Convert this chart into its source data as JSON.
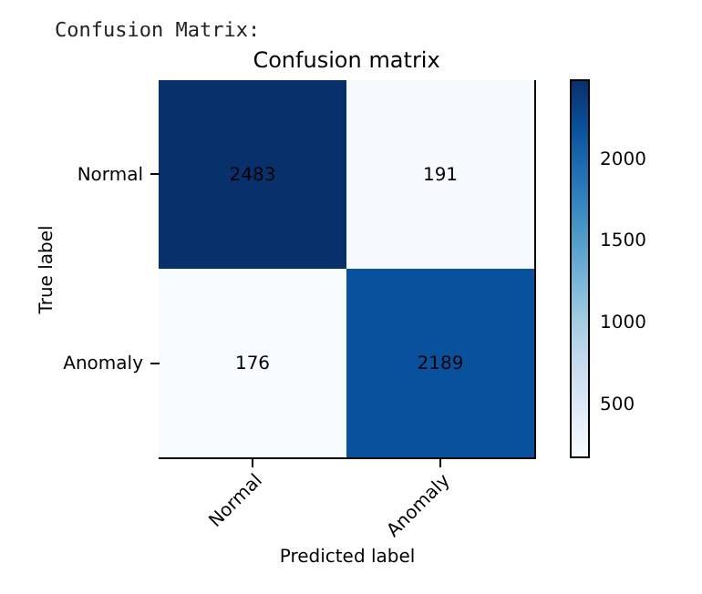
{
  "chart_data": {
    "type": "heatmap",
    "title": "Confusion matrix",
    "xlabel": "Predicted label",
    "ylabel": "True label",
    "annotations": [
      "Confusion Matrix:"
    ],
    "categories": [
      "Normal",
      "Anomaly"
    ],
    "y_categories": [
      "Normal",
      "Anomaly"
    ],
    "cells": [
      [
        2483,
        191
      ],
      [
        176,
        2189
      ]
    ],
    "clim": [
      176,
      2483
    ],
    "cticks": [
      500,
      1000,
      1500,
      2000
    ],
    "data_labels": true,
    "grid": false
  }
}
